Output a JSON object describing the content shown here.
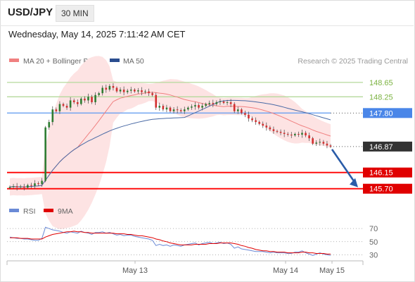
{
  "header": {
    "symbol": "USD/JPY",
    "timeframe": "30 MIN"
  },
  "datetime": "Wednesday, May 14, 2025 7:11:42 AM CET",
  "colors": {
    "bull": "#2e7d32",
    "bear": "#d32f2f",
    "ma20": "#f08080",
    "ma50": "#4a6aa5",
    "resistance": "#b5d99c",
    "pivot": "#6aa0f0",
    "support": "#ff0000",
    "rsi": "#6a8ad6",
    "rsi_ma": "#e00000",
    "arrow": "#2a5ca8"
  },
  "chart_data": [
    {
      "type": "candlestick",
      "legend": [
        {
          "name": "MA 20 + Bollinger Bands",
          "color": "#f08080"
        },
        {
          "name": "MA 50",
          "color": "#2a4d8f"
        }
      ],
      "watermark": "Research © 2025 Trading Central",
      "x_labels": [
        "May 13",
        "May 14",
        "May 15"
      ],
      "ylim": [
        145.42,
        148.98
      ],
      "levels": [
        {
          "label": "148.65",
          "value": 148.65,
          "kind": "resistance"
        },
        {
          "label": "148.25",
          "value": 148.25,
          "kind": "resistance"
        },
        {
          "label": "147.80",
          "value": 147.8,
          "kind": "pivot"
        },
        {
          "label": "146.87",
          "value": 146.87,
          "kind": "last"
        },
        {
          "label": "146.15",
          "value": 146.15,
          "kind": "support"
        },
        {
          "label": "145.70",
          "value": 145.7,
          "kind": "support"
        }
      ],
      "closes": [
        145.75,
        145.77,
        145.74,
        145.76,
        145.73,
        145.8,
        145.78,
        145.85,
        145.83,
        145.92,
        147.4,
        147.55,
        147.9,
        147.85,
        148.05,
        148.0,
        147.95,
        148.15,
        148.1,
        148.05,
        148.2,
        148.15,
        148.25,
        148.1,
        148.3,
        148.35,
        148.5,
        148.45,
        148.55,
        148.5,
        148.4,
        148.45,
        148.38,
        148.42,
        148.45,
        148.4,
        148.43,
        148.38,
        148.4,
        148.35,
        148.3,
        147.95,
        148.0,
        147.9,
        147.95,
        147.85,
        147.9,
        147.88,
        147.85,
        147.9,
        147.95,
        147.98,
        148.02,
        147.95,
        148.0,
        148.05,
        148.08,
        148.05,
        148.1,
        148.12,
        148.08,
        148.1,
        148.05,
        147.85,
        147.9,
        147.8,
        147.75,
        147.65,
        147.6,
        147.55,
        147.5,
        147.45,
        147.4,
        147.35,
        147.3,
        147.28,
        147.25,
        147.22,
        147.2,
        147.18,
        147.22,
        147.2,
        147.25,
        147.18,
        147.1,
        146.95,
        146.98,
        147.0,
        146.95,
        146.9,
        146.87
      ]
    },
    {
      "type": "line",
      "legend": [
        {
          "name": "RSI",
          "color": "#6a8ad6"
        },
        {
          "name": "9MA",
          "color": "#e00000"
        }
      ],
      "ylim": [
        25,
        82
      ],
      "y_ticks": [
        70,
        50,
        30
      ],
      "series": [
        {
          "name": "RSI",
          "values": [
            57,
            56,
            55,
            55,
            54,
            54,
            53,
            52,
            52,
            55,
            72,
            70,
            68,
            67,
            66,
            64,
            63,
            65,
            64,
            63,
            66,
            64,
            63,
            61,
            64,
            64,
            65,
            63,
            64,
            62,
            60,
            61,
            59,
            60,
            60,
            58,
            57,
            56,
            55,
            54,
            52,
            44,
            46,
            44,
            45,
            43,
            45,
            44,
            43,
            45,
            46,
            47,
            48,
            45,
            47,
            48,
            49,
            47,
            48,
            49,
            47,
            48,
            46,
            40,
            42,
            39,
            38,
            37,
            36,
            35,
            35,
            35,
            34,
            33,
            34,
            33,
            33,
            33,
            32,
            32,
            34,
            34,
            36,
            33,
            31,
            29,
            31,
            33,
            31,
            30,
            29
          ]
        },
        {
          "name": "9MA",
          "values": [
            56,
            56,
            56,
            55,
            55,
            55,
            54,
            54,
            54,
            54,
            57,
            59,
            61,
            62,
            63,
            64,
            65,
            65,
            66,
            65,
            65,
            64,
            64,
            63,
            63,
            63,
            63,
            63,
            63,
            63,
            62,
            62,
            62,
            61,
            61,
            60,
            59,
            59,
            58,
            57,
            56,
            54,
            53,
            51,
            50,
            48,
            47,
            46,
            45,
            45,
            45,
            45,
            46,
            46,
            46,
            46,
            47,
            47,
            47,
            48,
            48,
            48,
            48,
            47,
            46,
            44,
            43,
            41,
            40,
            38,
            37,
            36,
            36,
            35,
            35,
            34,
            34,
            34,
            33,
            33,
            33,
            33,
            34,
            34,
            33,
            33,
            32,
            32,
            32,
            31,
            31
          ]
        }
      ]
    }
  ]
}
